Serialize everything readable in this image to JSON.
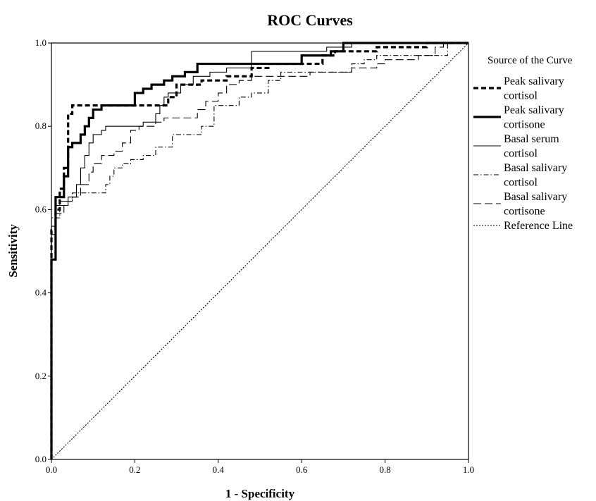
{
  "chart_data": {
    "type": "line",
    "title": "ROC Curves",
    "xlabel": "1 - Specificity",
    "ylabel": "Sensitivity",
    "xlim": [
      0,
      1
    ],
    "ylim": [
      0,
      1
    ],
    "x_ticks": [
      "0.0",
      "0.2",
      "0.4",
      "0.6",
      "0.8",
      "1.0"
    ],
    "y_ticks": [
      "0.0",
      "0.2",
      "0.4",
      "0.6",
      "0.8",
      "1.0"
    ],
    "grid": false,
    "legend": {
      "title": "Source of the Curve",
      "placement": "right"
    },
    "series": [
      {
        "name_lines": [
          "Peak salivary",
          "cortisol"
        ],
        "style": "bold-dashed",
        "points": [
          [
            0,
            0
          ],
          [
            0,
            0.55
          ],
          [
            0.01,
            0.55
          ],
          [
            0.01,
            0.6
          ],
          [
            0.02,
            0.6
          ],
          [
            0.02,
            0.65
          ],
          [
            0.03,
            0.65
          ],
          [
            0.03,
            0.7
          ],
          [
            0.04,
            0.7
          ],
          [
            0.04,
            0.83
          ],
          [
            0.05,
            0.83
          ],
          [
            0.05,
            0.85
          ],
          [
            0.28,
            0.85
          ],
          [
            0.28,
            0.87
          ],
          [
            0.3,
            0.87
          ],
          [
            0.3,
            0.9
          ],
          [
            0.36,
            0.9
          ],
          [
            0.36,
            0.91
          ],
          [
            0.42,
            0.91
          ],
          [
            0.42,
            0.92
          ],
          [
            0.48,
            0.92
          ],
          [
            0.48,
            0.94
          ],
          [
            0.52,
            0.94
          ],
          [
            0.52,
            0.95
          ],
          [
            0.65,
            0.95
          ],
          [
            0.65,
            0.97
          ],
          [
            0.68,
            0.97
          ],
          [
            0.68,
            0.98
          ],
          [
            0.78,
            0.98
          ],
          [
            0.78,
            0.99
          ],
          [
            0.9,
            0.99
          ],
          [
            0.9,
            1.0
          ],
          [
            1,
            1
          ]
        ]
      },
      {
        "name_lines": [
          "Peak salivary",
          "cortisone"
        ],
        "style": "bold-solid",
        "points": [
          [
            0,
            0
          ],
          [
            0,
            0.48
          ],
          [
            0.01,
            0.48
          ],
          [
            0.01,
            0.63
          ],
          [
            0.03,
            0.63
          ],
          [
            0.03,
            0.68
          ],
          [
            0.04,
            0.68
          ],
          [
            0.04,
            0.75
          ],
          [
            0.05,
            0.75
          ],
          [
            0.05,
            0.76
          ],
          [
            0.07,
            0.76
          ],
          [
            0.07,
            0.78
          ],
          [
            0.08,
            0.78
          ],
          [
            0.08,
            0.8
          ],
          [
            0.09,
            0.8
          ],
          [
            0.09,
            0.82
          ],
          [
            0.1,
            0.82
          ],
          [
            0.1,
            0.84
          ],
          [
            0.12,
            0.84
          ],
          [
            0.12,
            0.85
          ],
          [
            0.2,
            0.85
          ],
          [
            0.2,
            0.88
          ],
          [
            0.22,
            0.88
          ],
          [
            0.22,
            0.89
          ],
          [
            0.24,
            0.89
          ],
          [
            0.24,
            0.9
          ],
          [
            0.27,
            0.9
          ],
          [
            0.27,
            0.91
          ],
          [
            0.29,
            0.91
          ],
          [
            0.29,
            0.92
          ],
          [
            0.32,
            0.92
          ],
          [
            0.32,
            0.93
          ],
          [
            0.35,
            0.93
          ],
          [
            0.35,
            0.95
          ],
          [
            0.6,
            0.95
          ],
          [
            0.6,
            0.97
          ],
          [
            0.67,
            0.97
          ],
          [
            0.67,
            0.98
          ],
          [
            0.7,
            0.98
          ],
          [
            0.7,
            1.0
          ],
          [
            1,
            1
          ]
        ]
      },
      {
        "name_lines": [
          "Basal serum",
          "cortisol"
        ],
        "style": "thin-solid",
        "points": [
          [
            0,
            0
          ],
          [
            0,
            0.56
          ],
          [
            0.01,
            0.56
          ],
          [
            0.01,
            0.61
          ],
          [
            0.04,
            0.61
          ],
          [
            0.04,
            0.63
          ],
          [
            0.06,
            0.63
          ],
          [
            0.06,
            0.66
          ],
          [
            0.07,
            0.66
          ],
          [
            0.07,
            0.7
          ],
          [
            0.08,
            0.7
          ],
          [
            0.08,
            0.73
          ],
          [
            0.09,
            0.73
          ],
          [
            0.09,
            0.76
          ],
          [
            0.1,
            0.76
          ],
          [
            0.1,
            0.78
          ],
          [
            0.12,
            0.78
          ],
          [
            0.12,
            0.79
          ],
          [
            0.13,
            0.79
          ],
          [
            0.13,
            0.8
          ],
          [
            0.22,
            0.8
          ],
          [
            0.22,
            0.81
          ],
          [
            0.25,
            0.81
          ],
          [
            0.25,
            0.83
          ],
          [
            0.26,
            0.83
          ],
          [
            0.26,
            0.85
          ],
          [
            0.27,
            0.85
          ],
          [
            0.27,
            0.87
          ],
          [
            0.28,
            0.87
          ],
          [
            0.28,
            0.88
          ],
          [
            0.31,
            0.88
          ],
          [
            0.31,
            0.9
          ],
          [
            0.34,
            0.9
          ],
          [
            0.34,
            0.92
          ],
          [
            0.38,
            0.92
          ],
          [
            0.38,
            0.93
          ],
          [
            0.42,
            0.93
          ],
          [
            0.42,
            0.94
          ],
          [
            0.48,
            0.94
          ],
          [
            0.48,
            0.98
          ],
          [
            0.66,
            0.98
          ],
          [
            0.66,
            0.99
          ],
          [
            0.72,
            0.99
          ],
          [
            0.72,
            1.0
          ],
          [
            1,
            1
          ]
        ]
      },
      {
        "name_lines": [
          "Basal salivary",
          "cortisol"
        ],
        "style": "dash-dot",
        "points": [
          [
            0,
            0
          ],
          [
            0,
            0.58
          ],
          [
            0.02,
            0.58
          ],
          [
            0.02,
            0.62
          ],
          [
            0.05,
            0.62
          ],
          [
            0.05,
            0.64
          ],
          [
            0.13,
            0.64
          ],
          [
            0.13,
            0.66
          ],
          [
            0.14,
            0.66
          ],
          [
            0.14,
            0.68
          ],
          [
            0.15,
            0.68
          ],
          [
            0.15,
            0.7
          ],
          [
            0.17,
            0.7
          ],
          [
            0.17,
            0.71
          ],
          [
            0.19,
            0.71
          ],
          [
            0.19,
            0.72
          ],
          [
            0.22,
            0.72
          ],
          [
            0.22,
            0.73
          ],
          [
            0.25,
            0.73
          ],
          [
            0.25,
            0.75
          ],
          [
            0.29,
            0.75
          ],
          [
            0.29,
            0.78
          ],
          [
            0.36,
            0.78
          ],
          [
            0.36,
            0.8
          ],
          [
            0.39,
            0.8
          ],
          [
            0.39,
            0.85
          ],
          [
            0.45,
            0.85
          ],
          [
            0.45,
            0.87
          ],
          [
            0.48,
            0.87
          ],
          [
            0.48,
            0.88
          ],
          [
            0.52,
            0.88
          ],
          [
            0.52,
            0.91
          ],
          [
            0.55,
            0.91
          ],
          [
            0.55,
            0.93
          ],
          [
            0.72,
            0.93
          ],
          [
            0.72,
            0.95
          ],
          [
            0.75,
            0.95
          ],
          [
            0.75,
            0.96
          ],
          [
            0.78,
            0.96
          ],
          [
            0.78,
            0.97
          ],
          [
            0.95,
            0.97
          ],
          [
            0.95,
            1.0
          ],
          [
            1,
            1
          ]
        ]
      },
      {
        "name_lines": [
          "Basal salivary",
          "cortisone"
        ],
        "style": "long-dash",
        "points": [
          [
            0,
            0
          ],
          [
            0,
            0.54
          ],
          [
            0.01,
            0.54
          ],
          [
            0.01,
            0.59
          ],
          [
            0.03,
            0.59
          ],
          [
            0.03,
            0.62
          ],
          [
            0.05,
            0.62
          ],
          [
            0.05,
            0.63
          ],
          [
            0.07,
            0.63
          ],
          [
            0.07,
            0.66
          ],
          [
            0.09,
            0.66
          ],
          [
            0.09,
            0.69
          ],
          [
            0.1,
            0.69
          ],
          [
            0.1,
            0.71
          ],
          [
            0.12,
            0.71
          ],
          [
            0.12,
            0.73
          ],
          [
            0.15,
            0.73
          ],
          [
            0.15,
            0.74
          ],
          [
            0.17,
            0.74
          ],
          [
            0.17,
            0.76
          ],
          [
            0.19,
            0.76
          ],
          [
            0.19,
            0.79
          ],
          [
            0.21,
            0.79
          ],
          [
            0.21,
            0.8
          ],
          [
            0.25,
            0.8
          ],
          [
            0.25,
            0.81
          ],
          [
            0.27,
            0.81
          ],
          [
            0.27,
            0.82
          ],
          [
            0.35,
            0.82
          ],
          [
            0.35,
            0.84
          ],
          [
            0.37,
            0.84
          ],
          [
            0.37,
            0.86
          ],
          [
            0.4,
            0.86
          ],
          [
            0.4,
            0.88
          ],
          [
            0.42,
            0.88
          ],
          [
            0.42,
            0.9
          ],
          [
            0.45,
            0.9
          ],
          [
            0.45,
            0.91
          ],
          [
            0.48,
            0.91
          ],
          [
            0.48,
            0.92
          ],
          [
            0.62,
            0.92
          ],
          [
            0.62,
            0.93
          ],
          [
            0.72,
            0.93
          ],
          [
            0.72,
            0.94
          ],
          [
            0.78,
            0.94
          ],
          [
            0.78,
            0.95
          ],
          [
            0.8,
            0.95
          ],
          [
            0.8,
            0.96
          ],
          [
            0.88,
            0.96
          ],
          [
            0.88,
            0.97
          ],
          [
            0.92,
            0.97
          ],
          [
            0.92,
            0.99
          ],
          [
            0.94,
            0.99
          ],
          [
            0.94,
            1.0
          ],
          [
            1,
            1
          ]
        ]
      },
      {
        "name_lines": [
          "Reference Line"
        ],
        "style": "dotted",
        "points": [
          [
            0,
            0
          ],
          [
            1,
            1
          ]
        ]
      }
    ]
  }
}
